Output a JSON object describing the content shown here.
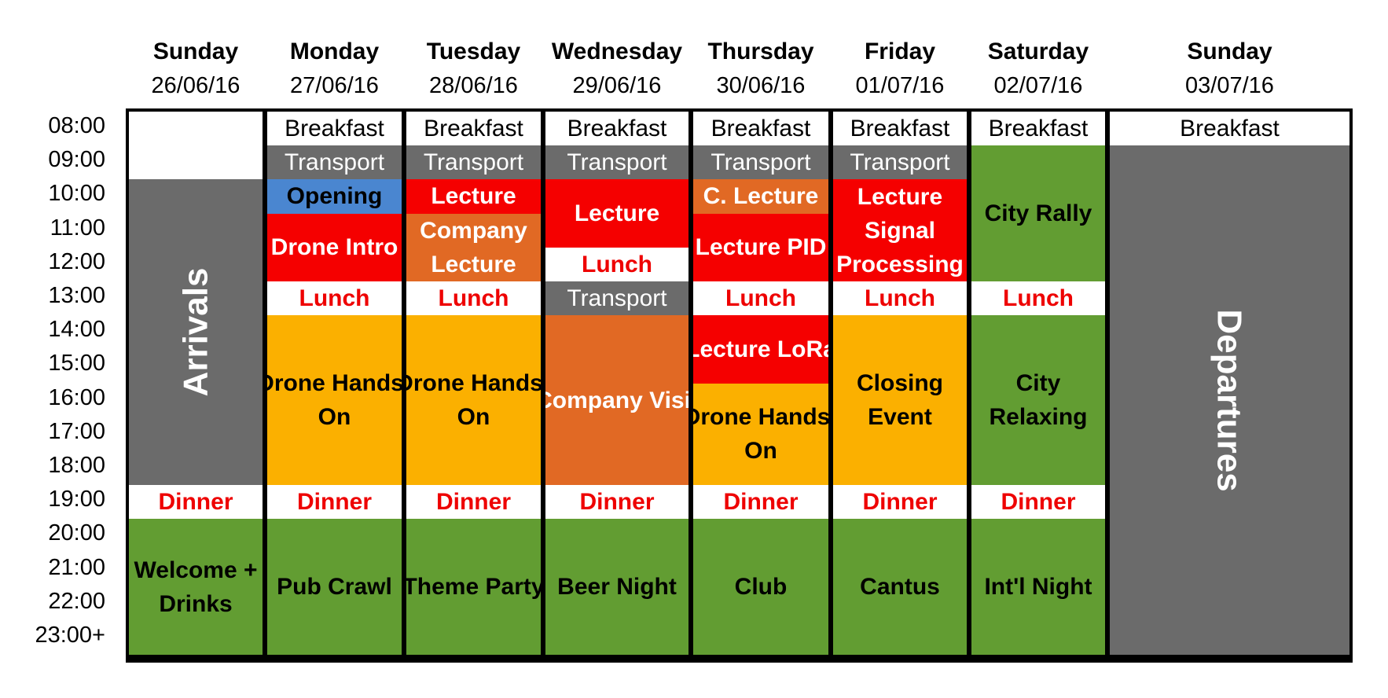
{
  "days": [
    {
      "name": "Sunday",
      "date": "26/06/16"
    },
    {
      "name": "Monday",
      "date": "27/06/16"
    },
    {
      "name": "Tuesday",
      "date": "28/06/16"
    },
    {
      "name": "Wednesday",
      "date": "29/06/16"
    },
    {
      "name": "Thursday",
      "date": "30/06/16"
    },
    {
      "name": "Friday",
      "date": "01/07/16"
    },
    {
      "name": "Saturday",
      "date": "02/07/16"
    },
    {
      "name": "Sunday",
      "date": "03/07/16"
    }
  ],
  "times": [
    "08:00",
    "09:00",
    "10:00",
    "11:00",
    "12:00",
    "13:00",
    "14:00",
    "15:00",
    "16:00",
    "17:00",
    "18:00",
    "19:00",
    "20:00",
    "21:00",
    "22:00",
    "23:00+"
  ],
  "schedule": [
    [
      {
        "start": 0,
        "end": 2,
        "style": "c-white",
        "lines": []
      },
      {
        "start": 2,
        "end": 11,
        "style": "c-gray big",
        "lines": [
          "Arrivals"
        ],
        "rotate": "up"
      },
      {
        "start": 11,
        "end": 12,
        "style": "c-red-text",
        "lines": [
          "Dinner"
        ]
      },
      {
        "start": 12,
        "end": 16,
        "style": "c-green",
        "lines": [
          "Welcome +",
          "Drinks"
        ]
      }
    ],
    [
      {
        "start": 0,
        "end": 1,
        "style": "c-white plain",
        "lines": [
          "Breakfast"
        ]
      },
      {
        "start": 1,
        "end": 2,
        "style": "c-gray",
        "lines": [
          "Transport"
        ]
      },
      {
        "start": 2,
        "end": 3,
        "style": "c-blue",
        "lines": [
          "Opening"
        ]
      },
      {
        "start": 3,
        "end": 5,
        "style": "c-red",
        "lines": [
          "Drone Intro"
        ]
      },
      {
        "start": 5,
        "end": 6,
        "style": "c-red-text",
        "lines": [
          "Lunch"
        ]
      },
      {
        "start": 6,
        "end": 11,
        "style": "c-orange-l",
        "lines": [
          "Drone Hands-",
          "On"
        ]
      },
      {
        "start": 11,
        "end": 12,
        "style": "c-red-text",
        "lines": [
          "Dinner"
        ]
      },
      {
        "start": 12,
        "end": 16,
        "style": "c-green",
        "lines": [
          "Pub Crawl"
        ]
      }
    ],
    [
      {
        "start": 0,
        "end": 1,
        "style": "c-white plain",
        "lines": [
          "Breakfast"
        ]
      },
      {
        "start": 1,
        "end": 2,
        "style": "c-gray",
        "lines": [
          "Transport"
        ]
      },
      {
        "start": 2,
        "end": 3,
        "style": "c-red",
        "lines": [
          "Lecture"
        ]
      },
      {
        "start": 3,
        "end": 5,
        "style": "c-orange-d",
        "lines": [
          "Company",
          "Lecture"
        ]
      },
      {
        "start": 5,
        "end": 6,
        "style": "c-red-text",
        "lines": [
          "Lunch"
        ]
      },
      {
        "start": 6,
        "end": 11,
        "style": "c-orange-l",
        "lines": [
          "Drone Hands-",
          "On"
        ]
      },
      {
        "start": 11,
        "end": 12,
        "style": "c-red-text",
        "lines": [
          "Dinner"
        ]
      },
      {
        "start": 12,
        "end": 16,
        "style": "c-green",
        "lines": [
          "Theme Party"
        ]
      }
    ],
    [
      {
        "start": 0,
        "end": 1,
        "style": "c-white plain",
        "lines": [
          "Breakfast"
        ]
      },
      {
        "start": 1,
        "end": 2,
        "style": "c-gray",
        "lines": [
          "Transport"
        ]
      },
      {
        "start": 2,
        "end": 4,
        "style": "c-red",
        "lines": [
          "Lecture"
        ]
      },
      {
        "start": 4,
        "end": 5,
        "style": "c-red-text",
        "lines": [
          "Lunch"
        ]
      },
      {
        "start": 5,
        "end": 6,
        "style": "c-gray",
        "lines": [
          "Transport"
        ]
      },
      {
        "start": 6,
        "end": 11,
        "style": "c-orange-d",
        "lines": [
          "Company Visit"
        ]
      },
      {
        "start": 11,
        "end": 12,
        "style": "c-red-text",
        "lines": [
          "Dinner"
        ]
      },
      {
        "start": 12,
        "end": 16,
        "style": "c-green",
        "lines": [
          "Beer Night"
        ]
      }
    ],
    [
      {
        "start": 0,
        "end": 1,
        "style": "c-white plain",
        "lines": [
          "Breakfast"
        ]
      },
      {
        "start": 1,
        "end": 2,
        "style": "c-gray",
        "lines": [
          "Transport"
        ]
      },
      {
        "start": 2,
        "end": 3,
        "style": "c-orange-d",
        "lines": [
          "C. Lecture"
        ]
      },
      {
        "start": 3,
        "end": 5,
        "style": "c-red",
        "lines": [
          "Lecture PID"
        ]
      },
      {
        "start": 5,
        "end": 6,
        "style": "c-red-text",
        "lines": [
          "Lunch"
        ]
      },
      {
        "start": 6,
        "end": 8,
        "style": "c-red",
        "lines": [
          "Lecture LoRa"
        ]
      },
      {
        "start": 8,
        "end": 11,
        "style": "c-orange-l",
        "lines": [
          "Drone Hands-",
          "On"
        ]
      },
      {
        "start": 11,
        "end": 12,
        "style": "c-red-text",
        "lines": [
          "Dinner"
        ]
      },
      {
        "start": 12,
        "end": 16,
        "style": "c-green",
        "lines": [
          "Club"
        ]
      }
    ],
    [
      {
        "start": 0,
        "end": 1,
        "style": "c-white plain",
        "lines": [
          "Breakfast"
        ]
      },
      {
        "start": 1,
        "end": 2,
        "style": "c-gray",
        "lines": [
          "Transport"
        ]
      },
      {
        "start": 2,
        "end": 5,
        "style": "c-red",
        "lines": [
          "Lecture",
          "Signal",
          "Processing"
        ]
      },
      {
        "start": 5,
        "end": 6,
        "style": "c-red-text",
        "lines": [
          "Lunch"
        ]
      },
      {
        "start": 6,
        "end": 11,
        "style": "c-orange-l",
        "lines": [
          "Closing",
          "Event"
        ]
      },
      {
        "start": 11,
        "end": 12,
        "style": "c-red-text",
        "lines": [
          "Dinner"
        ]
      },
      {
        "start": 12,
        "end": 16,
        "style": "c-green",
        "lines": [
          "Cantus"
        ]
      }
    ],
    [
      {
        "start": 0,
        "end": 1,
        "style": "c-white plain",
        "lines": [
          "Breakfast"
        ]
      },
      {
        "start": 1,
        "end": 5,
        "style": "c-green",
        "lines": [
          "City Rally"
        ]
      },
      {
        "start": 5,
        "end": 6,
        "style": "c-red-text",
        "lines": [
          "Lunch"
        ]
      },
      {
        "start": 6,
        "end": 11,
        "style": "c-green",
        "lines": [
          "City",
          "Relaxing"
        ]
      },
      {
        "start": 11,
        "end": 12,
        "style": "c-red-text",
        "lines": [
          "Dinner"
        ]
      },
      {
        "start": 12,
        "end": 16,
        "style": "c-green",
        "lines": [
          "Int'l Night"
        ]
      }
    ],
    [
      {
        "start": 0,
        "end": 1,
        "style": "c-white plain",
        "lines": [
          "Breakfast"
        ]
      },
      {
        "start": 1,
        "end": 16,
        "style": "c-gray big",
        "lines": [
          "Departures"
        ],
        "rotate": "down"
      }
    ]
  ],
  "colors": {
    "gray": "#6b6b6b",
    "blue": "#4a86d0",
    "red": "#f50000",
    "orange_dark": "#e16924",
    "orange_light": "#fbb000",
    "green": "#629d32",
    "red_text": "#ee0000"
  }
}
